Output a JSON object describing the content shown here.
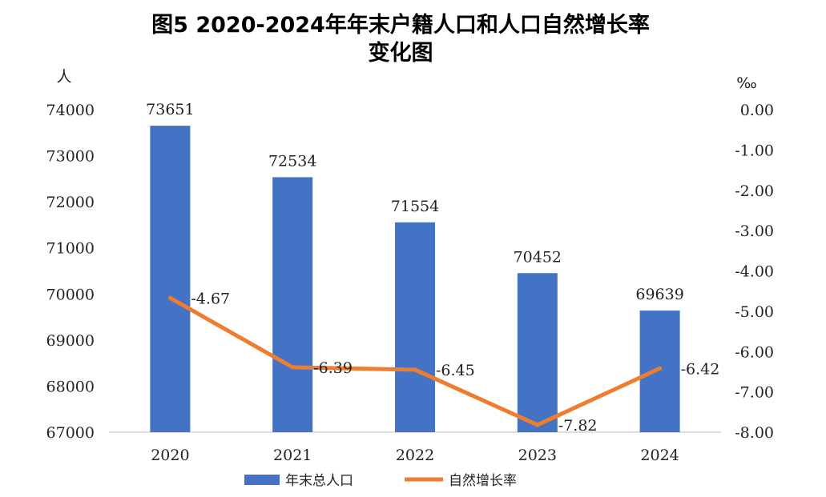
{
  "chart_data": {
    "type": "bar",
    "title_lines": [
      "图5 2020-2024年年末户籍人口和人口自然增长率",
      "变化图"
    ],
    "categories": [
      "2020",
      "2021",
      "2022",
      "2023",
      "2024"
    ],
    "y_left_unit": "人",
    "y_right_unit": "‰",
    "ylim_left": [
      67000,
      74000
    ],
    "yticks_left": [
      "74000",
      "73000",
      "72000",
      "71000",
      "70000",
      "69000",
      "68000",
      "67000"
    ],
    "ylim_right": [
      -8.0,
      0.0
    ],
    "yticks_right": [
      "0.00",
      "-1.00",
      "-2.00",
      "-3.00",
      "-4.00",
      "-5.00",
      "-6.00",
      "-7.00",
      "-8.00"
    ],
    "series": [
      {
        "name": "年末总人口",
        "type": "bar",
        "axis": "left",
        "color": "#4472C4",
        "values": [
          73651,
          72534,
          71554,
          70452,
          69639
        ],
        "labels": [
          "73651",
          "72534",
          "71554",
          "70452",
          "69639"
        ]
      },
      {
        "name": "自然增长率",
        "type": "line",
        "axis": "right",
        "color": "#ED7D31",
        "values": [
          -4.67,
          -6.39,
          -6.45,
          -7.82,
          -6.42
        ],
        "labels": [
          "-4.67",
          "-6.39",
          "-6.45",
          "-7.82",
          "-6.42"
        ]
      }
    ],
    "legend_position": "bottom",
    "grid": false
  }
}
